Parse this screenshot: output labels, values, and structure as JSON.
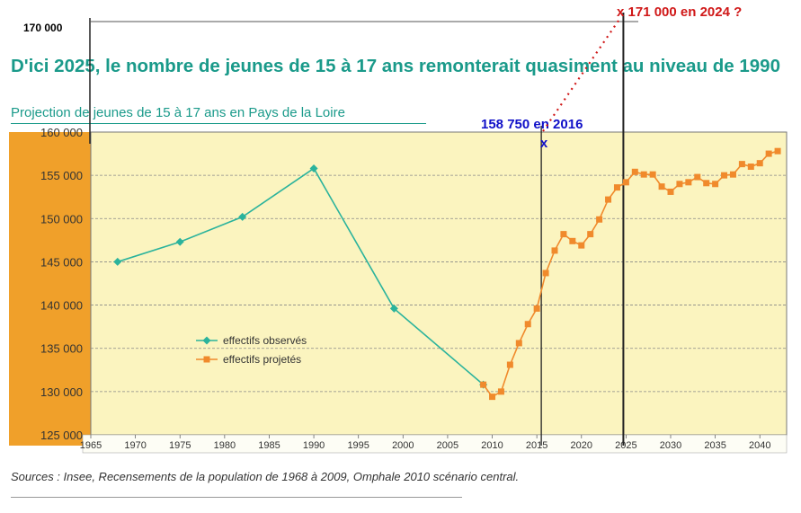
{
  "top_label": "170 000",
  "title": "D'ici 2025, le nombre de jeunes de 15 à 17 ans remonterait quasiment au niveau de 1990",
  "subtitle": "Projection de jeunes de 15 à 17 ans en Pays de la Loire",
  "source": "Sources : Insee, Recensements de la population de 1968 à 2009, Omphale 2010 scénario central.",
  "colors": {
    "title_teal": "#1a9a8a",
    "plot_bg": "#fbf4bf",
    "axis_band": "#f0a02a",
    "observed": "#2bb39c",
    "projected": "#f08a2c",
    "annotation_blue": "#1010c8",
    "annotation_red": "#d01818"
  },
  "annotations": {
    "blue_label": "158 750 en 2016",
    "blue_marker": "x",
    "red_label": "x 171 000 en 2024 ?"
  },
  "chart_data": {
    "type": "line",
    "ylim": [
      125000,
      160000
    ],
    "xlim": [
      1965,
      2043
    ],
    "y_ticks": [
      "125 000",
      "130 000",
      "135 000",
      "140 000",
      "145 000",
      "150 000",
      "155 000",
      "160 000"
    ],
    "x_ticks": [
      "1965",
      "1970",
      "1975",
      "1980",
      "1985",
      "1990",
      "1995",
      "2000",
      "2005",
      "2010",
      "2015",
      "2020",
      "2025",
      "2030",
      "2035",
      "2040"
    ],
    "grid": "horizontal dashed",
    "legend_position": "bottom-left",
    "series": [
      {
        "name": "effectifs observés",
        "marker": "diamond",
        "x": [
          1968,
          1975,
          1982,
          1990,
          1999,
          2009
        ],
        "y": [
          145000,
          147300,
          150200,
          155800,
          139600,
          130800
        ]
      },
      {
        "name": "effectifs projetés",
        "marker": "square",
        "x": [
          2009,
          2010,
          2011,
          2012,
          2013,
          2014,
          2015,
          2016,
          2017,
          2018,
          2019,
          2020,
          2021,
          2022,
          2023,
          2024,
          2025,
          2026,
          2027,
          2028,
          2029,
          2030,
          2031,
          2032,
          2033,
          2034,
          2035,
          2036,
          2037,
          2038,
          2039,
          2040,
          2041,
          2042
        ],
        "y": [
          130800,
          129400,
          130000,
          133100,
          135600,
          137800,
          139600,
          143700,
          146300,
          148200,
          147400,
          146900,
          148200,
          149900,
          152200,
          153600,
          154200,
          155400,
          155100,
          155100,
          153700,
          153100,
          154000,
          154200,
          154800,
          154100,
          154000,
          155000,
          155100,
          156300,
          156000,
          156400,
          157500,
          157800
        ]
      }
    ],
    "overlay_annotations": [
      {
        "label": "158 750 en 2016",
        "x": 2016,
        "y": 158750
      },
      {
        "label": "x 171 000 en 2024 ?",
        "x": 2024,
        "y": 171000
      }
    ]
  }
}
